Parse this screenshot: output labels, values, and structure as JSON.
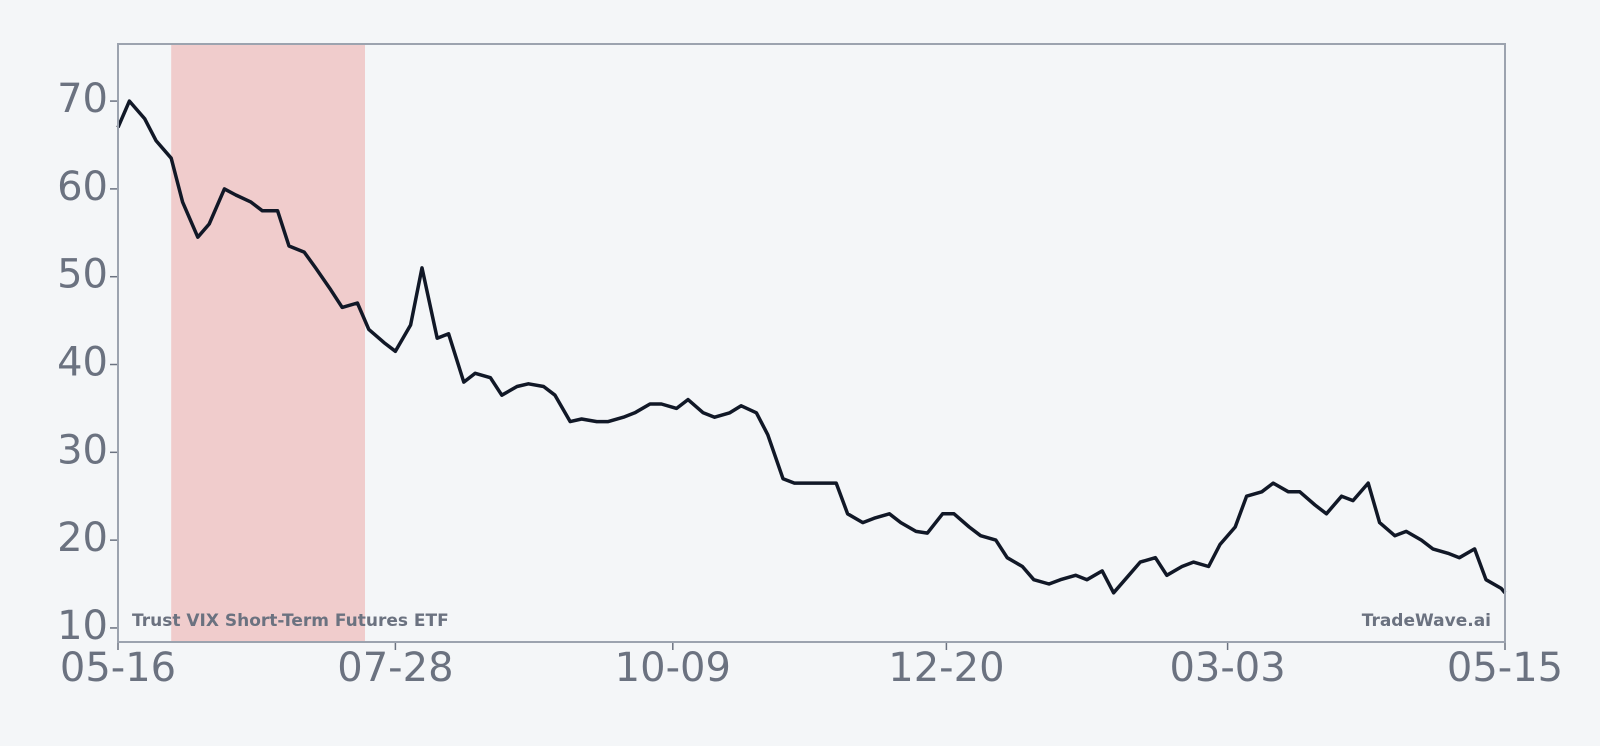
{
  "chart_data": {
    "type": "line",
    "x": [
      "05-16",
      "05-19",
      "05-23",
      "05-26",
      "05-30",
      "06-02",
      "06-06",
      "06-09",
      "06-13",
      "06-16",
      "06-20",
      "06-23",
      "06-27",
      "06-30",
      "07-04",
      "07-07",
      "07-11",
      "07-14",
      "07-18",
      "07-21",
      "07-25",
      "07-28",
      "08-01",
      "08-04",
      "08-08",
      "08-11",
      "08-15",
      "08-18",
      "08-22",
      "08-25",
      "08-29",
      "09-01",
      "09-05",
      "09-08",
      "09-12",
      "09-15",
      "09-19",
      "09-22",
      "09-26",
      "09-29",
      "10-03",
      "10-06",
      "10-10",
      "10-13",
      "10-17",
      "10-20",
      "10-24",
      "10-27",
      "10-31",
      "11-03",
      "11-07",
      "11-10",
      "11-14",
      "11-17",
      "11-21",
      "11-24",
      "11-28",
      "12-01",
      "12-05",
      "12-08",
      "12-12",
      "12-15",
      "12-19",
      "12-22",
      "12-26",
      "12-29",
      "01-02",
      "01-05",
      "01-09",
      "01-12",
      "01-16",
      "01-19",
      "01-23",
      "01-26",
      "01-30",
      "02-02",
      "02-06",
      "02-09",
      "02-13",
      "02-16",
      "02-20",
      "02-23",
      "02-27",
      "03-01",
      "03-05",
      "03-08",
      "03-12",
      "03-15",
      "03-19",
      "03-22",
      "03-26",
      "03-29",
      "04-02",
      "04-05",
      "04-09",
      "04-12",
      "04-16",
      "04-19",
      "04-23",
      "04-26",
      "04-30",
      "05-03",
      "05-07",
      "05-10",
      "05-14",
      "05-15"
    ],
    "values": [
      67,
      70,
      68,
      65.5,
      63.5,
      58.5,
      54.5,
      56,
      60,
      59.3,
      58.5,
      57.5,
      57.5,
      53.5,
      52.8,
      51,
      48.5,
      46.5,
      47,
      44,
      42.5,
      41.5,
      44.5,
      51,
      43,
      43.5,
      38,
      39,
      38.5,
      36.5,
      37.5,
      37.8,
      37.5,
      36.5,
      33.5,
      33.8,
      33.5,
      33.5,
      34,
      34.5,
      35.5,
      35.5,
      35,
      36,
      34.5,
      34,
      34.5,
      35.3,
      34.5,
      32,
      27,
      26.5,
      26.5,
      26.5,
      26.5,
      23,
      22,
      22.5,
      23,
      22,
      21,
      20.8,
      23,
      23,
      21.5,
      20.5,
      20,
      18,
      17,
      15.5,
      15,
      15.5,
      16,
      15.5,
      16.5,
      14,
      16,
      17.5,
      18,
      16,
      17,
      17.5,
      17,
      19.5,
      21.5,
      25,
      25.5,
      26.5,
      25.5,
      25.5,
      24,
      23,
      25,
      24.5,
      26.5,
      22,
      20.5,
      21,
      20,
      19,
      18.5,
      18,
      19,
      15.5,
      14.5,
      14
    ],
    "color": "#111827",
    "xlim": [
      "05-16",
      "05-15"
    ],
    "xticks": [
      "05-16",
      "07-28",
      "10-09",
      "12-20",
      "03-03",
      "05-15"
    ],
    "ylim": [
      8.4,
      76.5
    ],
    "yticks": [
      10,
      20,
      30,
      40,
      50,
      60,
      70
    ],
    "shaded_range": [
      "05-30",
      "07-20"
    ],
    "shade_color": "#f0cccc",
    "annotations": [
      "Trust VIX Short-Term Futures ETF",
      "TradeWave.ai"
    ]
  }
}
